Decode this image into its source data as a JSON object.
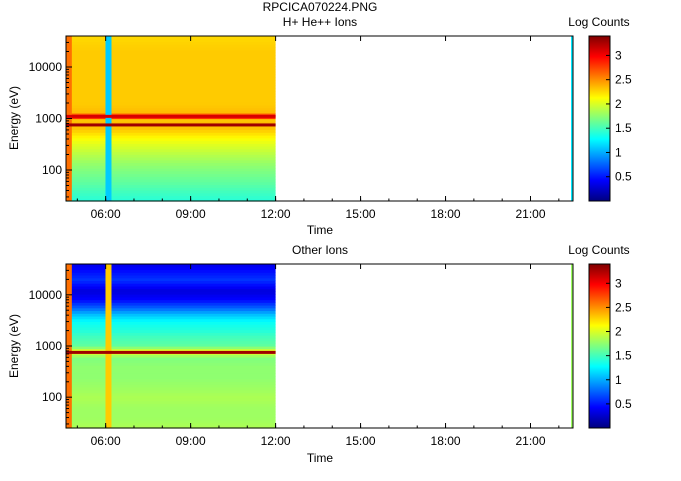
{
  "figure": {
    "title": "RPCICA070224.PNG"
  },
  "chart_data": [
    {
      "type": "heatmap",
      "title": "H+ He++ Ions",
      "xlabel": "Time",
      "ylabel": "Energy (eV)",
      "x_ticks": [
        "06:00",
        "09:00",
        "12:00",
        "15:00",
        "18:00",
        "21:00"
      ],
      "x_range_hours": [
        4.6,
        22.5
      ],
      "data_coverage_hours": [
        4.6,
        12.0
      ],
      "y_scale": "log",
      "y_ticks": [
        "100",
        "1000",
        "10000"
      ],
      "y_range": [
        25,
        40000
      ],
      "colorbar": {
        "label": "Log Counts",
        "range": [
          0,
          3.4
        ],
        "ticks": [
          "0.5",
          "1",
          "1.5",
          "2",
          "2.5",
          "3"
        ]
      },
      "profile": {
        "energy": [
          25,
          40,
          60,
          100,
          150,
          250,
          400,
          600,
          800,
          1000,
          1100,
          1300,
          2000,
          3000,
          5000,
          10000,
          20000,
          40000
        ],
        "log_counts": [
          1.4,
          1.5,
          1.6,
          1.7,
          1.8,
          1.95,
          2.1,
          2.3,
          2.35,
          2.3,
          3.1,
          2.35,
          2.3,
          2.3,
          2.3,
          2.3,
          2.3,
          2.25
        ]
      },
      "features": [
        {
          "name": "onset column",
          "time_hours": 4.7,
          "log_counts": 2.6
        },
        {
          "name": "gap column",
          "time_hours": 6.1,
          "log_counts": 1.1
        },
        {
          "name": "bright band",
          "energy": 1100,
          "log_counts": 3.1
        },
        {
          "name": "bright band",
          "energy": 750,
          "log_counts": 3.3
        }
      ]
    },
    {
      "type": "heatmap",
      "title": "Other Ions",
      "xlabel": "Time",
      "ylabel": "Energy (eV)",
      "x_ticks": [
        "06:00",
        "09:00",
        "12:00",
        "15:00",
        "18:00",
        "21:00"
      ],
      "x_range_hours": [
        4.6,
        22.5
      ],
      "data_coverage_hours": [
        4.6,
        12.0
      ],
      "y_scale": "log",
      "y_ticks": [
        "100",
        "1000",
        "10000"
      ],
      "y_range": [
        25,
        40000
      ],
      "colorbar": {
        "label": "Log Counts",
        "range": [
          0,
          3.4
        ],
        "ticks": [
          "0.5",
          "1",
          "1.5",
          "2",
          "2.5",
          "3"
        ]
      },
      "profile": {
        "energy": [
          25,
          40,
          60,
          100,
          150,
          250,
          400,
          600,
          800,
          1000,
          1500,
          2000,
          3000,
          4000,
          6000,
          8000,
          12000,
          20000,
          40000
        ],
        "log_counts": [
          1.85,
          1.8,
          1.8,
          1.85,
          1.8,
          1.75,
          1.75,
          1.7,
          2.1,
          1.6,
          1.5,
          1.4,
          1.3,
          1.1,
          0.7,
          0.45,
          0.3,
          0.6,
          0.35
        ]
      },
      "features": [
        {
          "name": "onset column",
          "time_hours": 4.7,
          "log_counts": 2.6
        },
        {
          "name": "gap column",
          "time_hours": 6.1,
          "log_counts": 2.3
        },
        {
          "name": "bright band",
          "energy": 750,
          "log_counts": 3.3
        }
      ]
    }
  ]
}
